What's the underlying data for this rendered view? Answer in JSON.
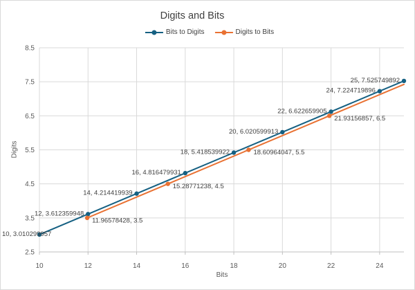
{
  "chart_data": {
    "type": "line",
    "title": "Digits and Bits",
    "xlabel": "Bits",
    "ylabel": "Digits",
    "xlim": [
      10,
      25
    ],
    "ylim": [
      2.5,
      8.5
    ],
    "x_ticks": [
      10,
      12,
      14,
      16,
      18,
      20,
      22,
      24
    ],
    "y_ticks": [
      2.5,
      3.5,
      4.5,
      5.5,
      6.5,
      7.5,
      8.5
    ],
    "grid": true,
    "legend_position": "top-center",
    "colors": {
      "grid": "#D9D9D9",
      "axis": "#BFBFBF",
      "title_text": "#404040",
      "tick_text": "#595959",
      "data_label_text": "#404040",
      "background": "#FFFFFF",
      "border": "#D9D9D9"
    },
    "series": [
      {
        "name": "Bits to Digits",
        "color": "#156082",
        "marker": "circle",
        "label_side": "left",
        "points": [
          {
            "x": 10,
            "y": 3.010299957,
            "label": "10, 3.010299957"
          },
          {
            "x": 12,
            "y": 3.612359948,
            "label": "12, 3.612359948"
          },
          {
            "x": 14,
            "y": 4.214419939,
            "label": "14, 4.214419939"
          },
          {
            "x": 16,
            "y": 4.816479931,
            "label": "16, 4.816479931"
          },
          {
            "x": 18,
            "y": 5.418539922,
            "label": "18, 5.418539922"
          },
          {
            "x": 20,
            "y": 6.020599913,
            "label": "20, 6.020599913"
          },
          {
            "x": 22,
            "y": 6.622659905,
            "label": "22, 6.622659905"
          },
          {
            "x": 24,
            "y": 7.224719896,
            "label": "24, 7.224719896"
          },
          {
            "x": 25,
            "y": 7.525749892,
            "label": "25, 7.525749892"
          }
        ]
      },
      {
        "name": "Digits to Bits",
        "color": "#E97132",
        "marker": "circle",
        "label_side": "right",
        "points": [
          {
            "x": 11.96578428,
            "y": 3.5,
            "label": "11.96578428, 3.5"
          },
          {
            "x": 15.28771238,
            "y": 4.5,
            "label": "15.28771238, 4.5"
          },
          {
            "x": 18.60964047,
            "y": 5.5,
            "label": "18.60964047, 5.5"
          },
          {
            "x": 21.93156857,
            "y": 6.5,
            "label": "21.93156857, 6.5"
          }
        ],
        "line_extends_to": {
          "x": 25,
          "y": 7.424
        }
      }
    ]
  }
}
